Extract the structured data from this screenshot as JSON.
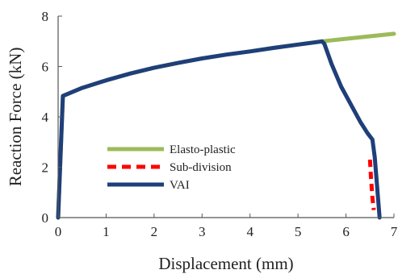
{
  "chart_data": {
    "type": "line",
    "xlabel": "Displacement (mm)",
    "ylabel": "Reaction Force (kN)",
    "xlim": [
      0,
      7
    ],
    "ylim": [
      0,
      8
    ],
    "xticks": [
      0,
      1,
      2,
      3,
      4,
      5,
      6,
      7
    ],
    "yticks": [
      0,
      2,
      4,
      6,
      8
    ],
    "grid": false,
    "legend": "center-left",
    "series": [
      {
        "name": "Elasto-plastic",
        "color": "#9bbb59",
        "style": "solid",
        "x": [
          0,
          0.1,
          0.5,
          1,
          1.5,
          2,
          2.5,
          3,
          3.5,
          4,
          4.5,
          5,
          5.5,
          6,
          6.5,
          7
        ],
        "y": [
          0,
          4.83,
          5.15,
          5.45,
          5.72,
          5.95,
          6.14,
          6.32,
          6.47,
          6.6,
          6.74,
          6.87,
          7.0,
          7.1,
          7.2,
          7.3
        ]
      },
      {
        "name": "Sub-division",
        "color": "#ff0000",
        "style": "dashed",
        "x": [
          6.5,
          6.52,
          6.55,
          6.58
        ],
        "y": [
          2.3,
          1.6,
          0.8,
          0.3
        ]
      },
      {
        "name": "VAI",
        "color": "#1f3f7a",
        "style": "solid",
        "x": [
          0,
          0.1,
          0.5,
          1,
          1.5,
          2,
          2.5,
          3,
          3.5,
          4,
          4.5,
          5,
          5.4,
          5.5,
          5.55,
          5.7,
          5.9,
          6.1,
          6.3,
          6.45,
          6.55,
          6.6,
          6.65,
          6.7
        ],
        "y": [
          0,
          4.83,
          5.15,
          5.45,
          5.72,
          5.95,
          6.14,
          6.32,
          6.47,
          6.6,
          6.74,
          6.87,
          6.97,
          7.0,
          6.9,
          6.1,
          5.2,
          4.5,
          3.8,
          3.35,
          3.1,
          2.4,
          1.2,
          0
        ]
      }
    ]
  }
}
